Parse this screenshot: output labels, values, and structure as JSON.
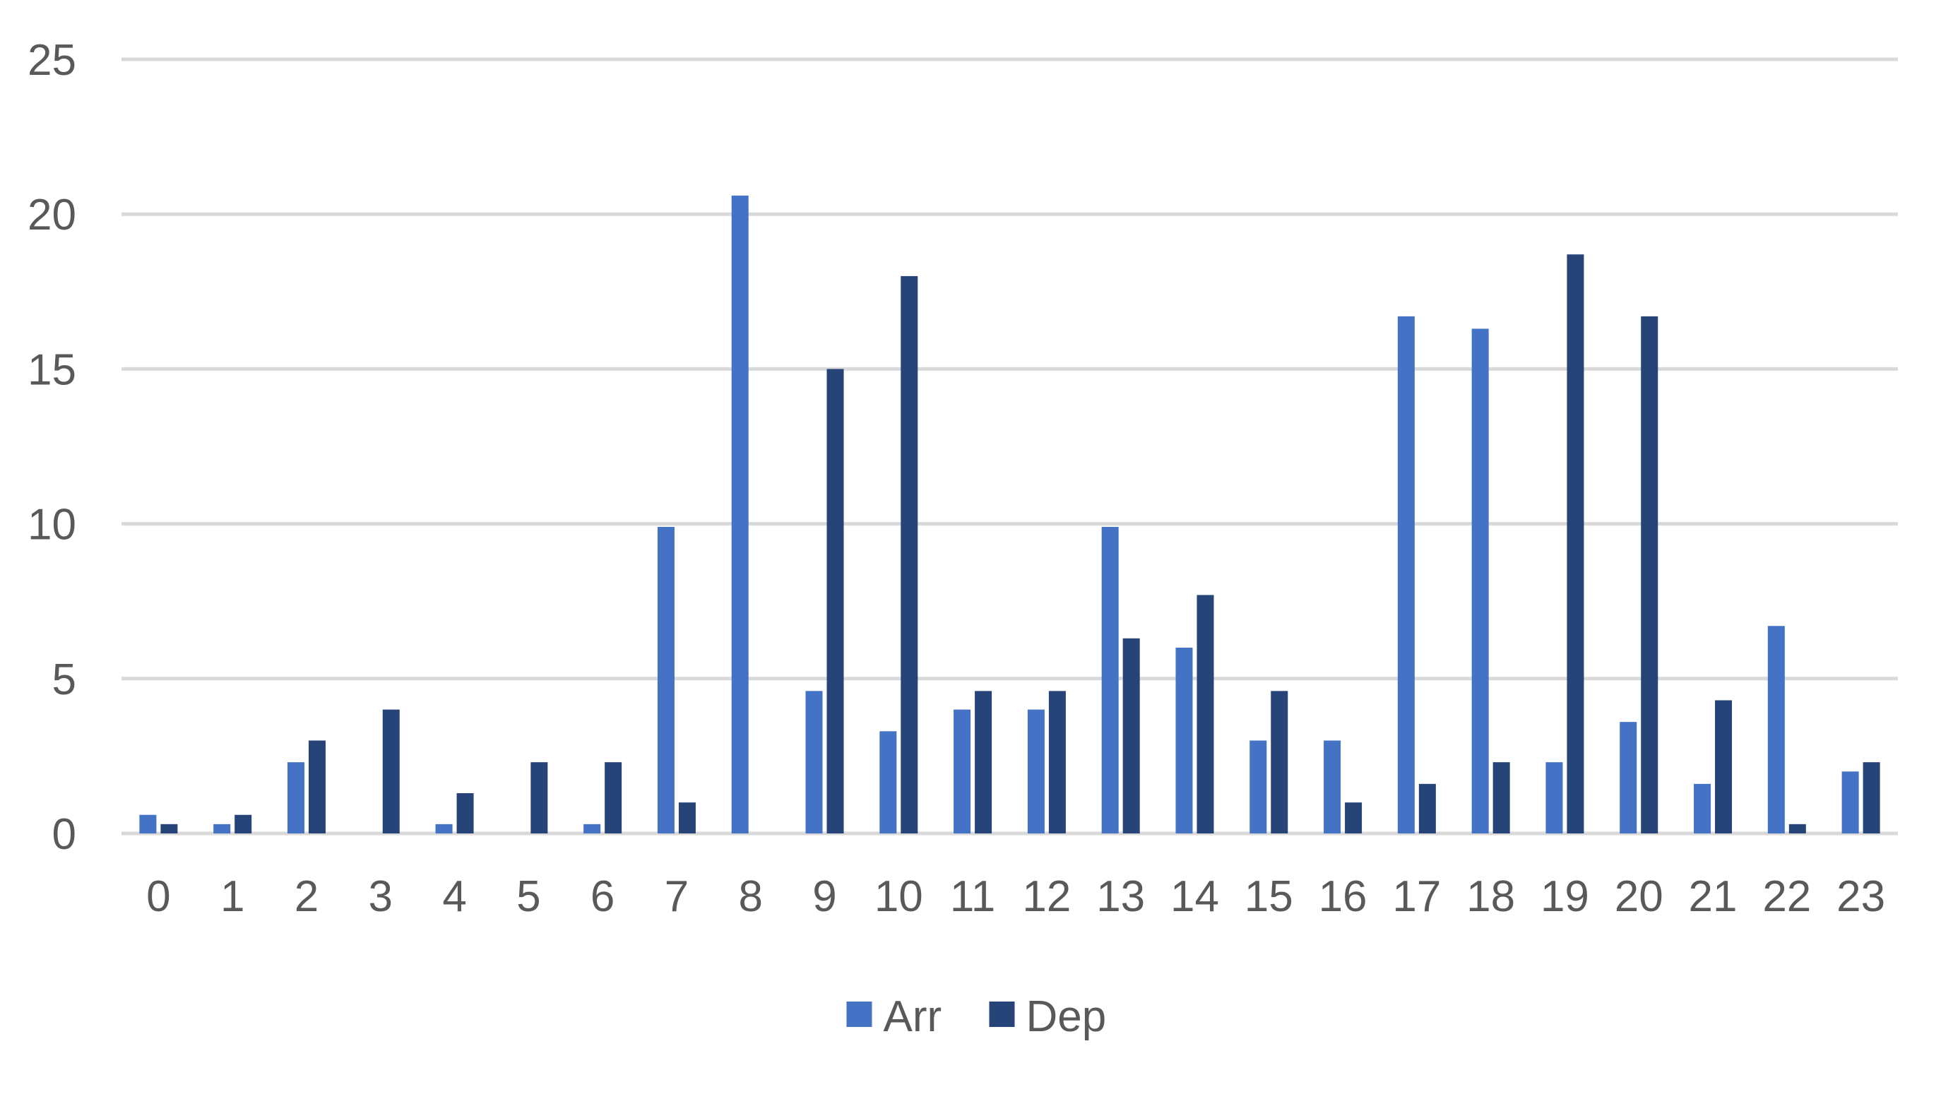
{
  "chart_data": {
    "type": "bar",
    "title": "",
    "xlabel": "",
    "ylabel": "",
    "categories": [
      "0",
      "1",
      "2",
      "3",
      "4",
      "5",
      "6",
      "7",
      "8",
      "9",
      "10",
      "11",
      "12",
      "13",
      "14",
      "15",
      "16",
      "17",
      "18",
      "19",
      "20",
      "21",
      "22",
      "23"
    ],
    "series": [
      {
        "name": "Arr",
        "color": "#4472c4",
        "values": [
          0.6,
          0.3,
          2.3,
          0,
          0.3,
          0,
          0.3,
          9.9,
          20.6,
          4.6,
          3.3,
          4.0,
          4.0,
          9.9,
          6.0,
          3.0,
          3.0,
          16.7,
          16.3,
          2.3,
          3.6,
          1.6,
          6.7,
          2.0
        ]
      },
      {
        "name": "Dep",
        "color": "#264478",
        "values": [
          0.3,
          0.6,
          3.0,
          4.0,
          1.3,
          2.3,
          2.3,
          1.0,
          0,
          15.0,
          18.0,
          4.6,
          4.6,
          6.3,
          7.7,
          4.6,
          1.0,
          1.6,
          2.3,
          18.7,
          16.7,
          4.3,
          0.3,
          2.3
        ]
      }
    ],
    "ylim": [
      0,
      25
    ],
    "yticks": [
      "0",
      "5",
      "10",
      "15",
      "20",
      "25"
    ],
    "ytick_values": [
      0,
      5,
      10,
      15,
      20,
      25
    ],
    "grid": true,
    "legend_position": "bottom"
  }
}
